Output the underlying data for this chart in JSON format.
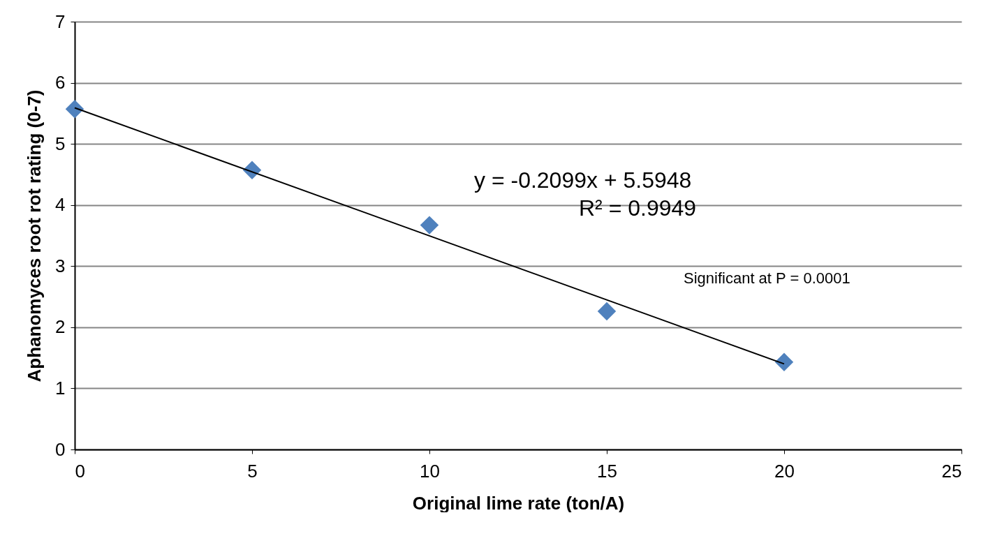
{
  "chart_data": {
    "type": "scatter",
    "xlabel": "Original lime rate (ton/A)",
    "ylabel": "Aphanomyces root rot rating (0-7)",
    "xlim": [
      0,
      25
    ],
    "xticks": [
      0,
      5,
      10,
      15,
      20,
      25
    ],
    "ylim": [
      0,
      7
    ],
    "yticks": [
      0,
      1,
      2,
      3,
      4,
      5,
      6,
      7
    ],
    "grid": "y",
    "series": [
      {
        "color": "#4f81bd",
        "marker": "diamond",
        "x": [
          0,
          5,
          10,
          15,
          20
        ],
        "values": [
          5.57,
          4.57,
          3.67,
          2.26,
          1.43
        ]
      },
      {
        "type": "line",
        "color": "#000000",
        "marker": "none",
        "line_style": "solid",
        "x": [
          0,
          20
        ],
        "values": [
          5.59,
          1.4
        ]
      }
    ],
    "annotations": [
      "y = -0.2099x + 5.5948",
      "R² = 0.9949",
      "Significant at P = 0.0001"
    ]
  }
}
